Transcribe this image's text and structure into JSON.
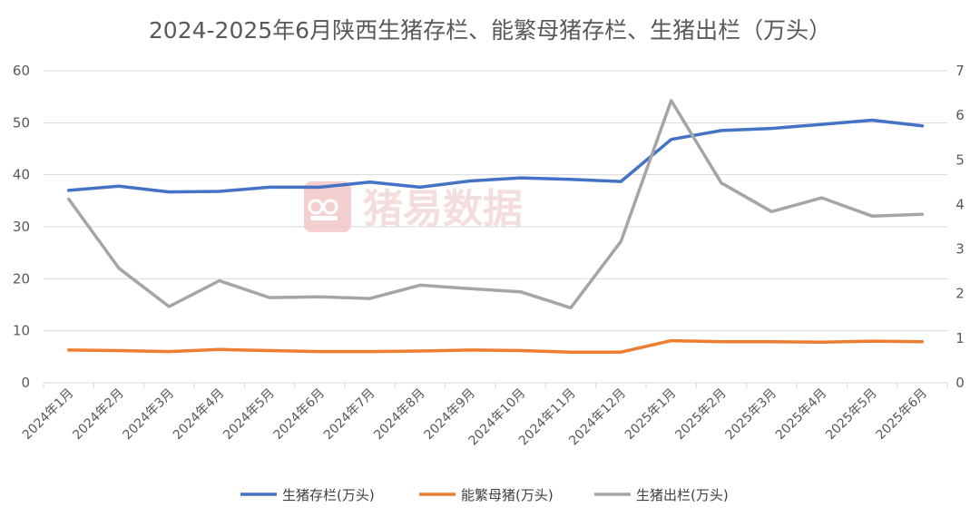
{
  "chart_data": {
    "type": "line",
    "title": "2024-2025年6月陕西生猪存栏、能繁母猪存栏、生猪出栏（万头）",
    "categories": [
      "2024年1月",
      "2024年2月",
      "2024年3月",
      "2024年4月",
      "2024年5月",
      "2024年6月",
      "2024年7月",
      "2024年8月",
      "2024年9月",
      "2024年10月",
      "2024年11月",
      "2024年12月",
      "2025年1月",
      "2025年2月",
      "2025年3月",
      "2025年4月",
      "2025年5月",
      "2025年6月"
    ],
    "y_left": {
      "min": 0,
      "max": 60,
      "ticks": [
        0,
        10,
        20,
        30,
        40,
        50,
        60
      ]
    },
    "y_right": {
      "min": 0,
      "max": 7,
      "ticks": [
        0,
        1,
        2,
        3,
        4,
        5,
        6,
        7
      ]
    },
    "grid": true,
    "legend_position": "bottom",
    "series": [
      {
        "name": "生猪存栏(万头)",
        "axis": "left",
        "color": "#4472c4",
        "values": [
          37.0,
          37.8,
          36.7,
          36.8,
          37.6,
          37.6,
          38.6,
          37.6,
          38.8,
          39.4,
          39.1,
          38.7,
          46.8,
          48.5,
          48.9,
          49.7,
          50.5,
          49.4
        ]
      },
      {
        "name": "能繁母猪(万头)",
        "axis": "left",
        "color": "#ed7d31",
        "values": [
          6.3,
          6.2,
          6.0,
          6.4,
          6.2,
          6.0,
          6.0,
          6.1,
          6.3,
          6.2,
          5.9,
          5.9,
          8.1,
          7.9,
          7.9,
          7.8,
          8.0,
          7.9
        ]
      },
      {
        "name": "生猪出栏(万头)",
        "axis": "right",
        "color": "#a5a5a5",
        "values": [
          4.12,
          2.57,
          1.71,
          2.29,
          1.91,
          1.93,
          1.89,
          2.19,
          2.11,
          2.04,
          1.68,
          3.17,
          6.33,
          4.48,
          3.84,
          4.15,
          3.74,
          3.78
        ]
      }
    ]
  },
  "watermark": {
    "text": "猪易数据",
    "color": "#e06666"
  }
}
